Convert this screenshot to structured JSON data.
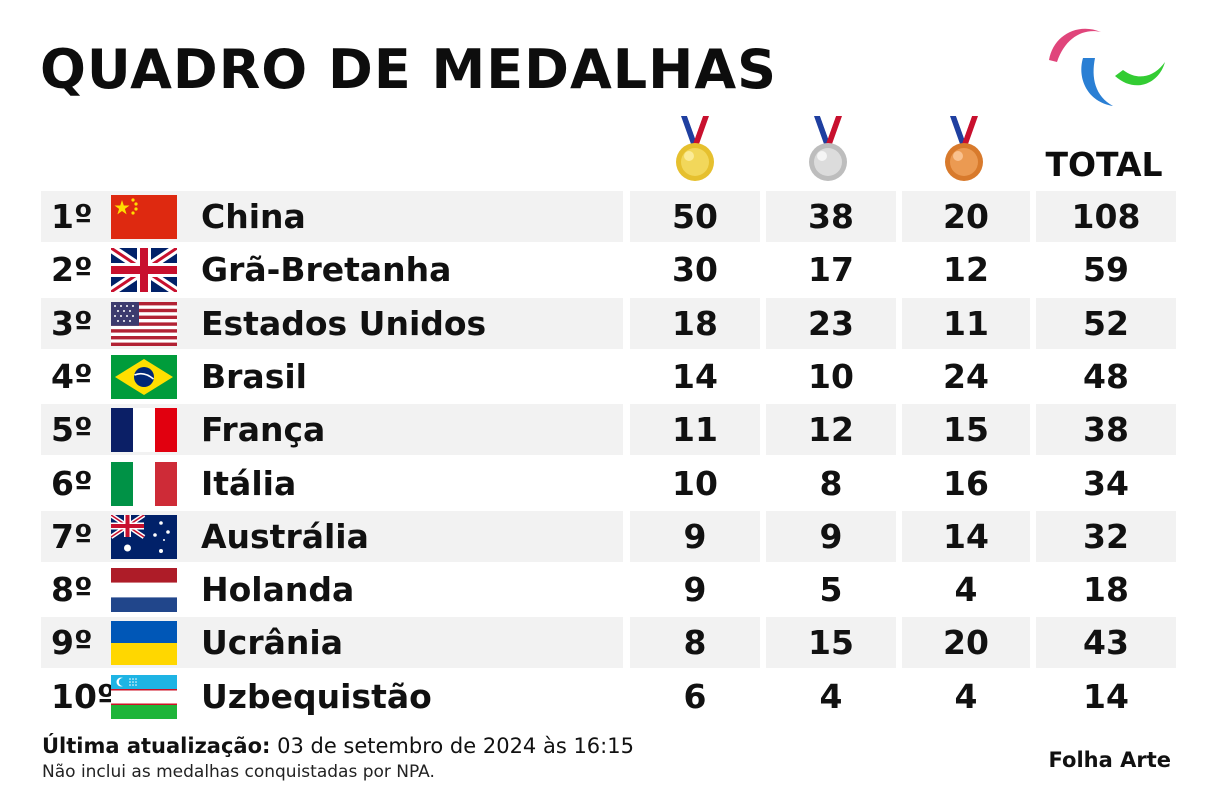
{
  "header": {
    "title": "QUADRO DE MEDALHAS",
    "total_label": "TOTAL"
  },
  "icons": {
    "logo": "paralympic-agitos-icon",
    "gold": "gold-medal-icon",
    "silver": "silver-medal-icon",
    "bronze": "bronze-medal-icon"
  },
  "colors": {
    "agitos_red": "#e0457b",
    "agitos_blue": "#2a7fd4",
    "agitos_green": "#33cc33",
    "gold": "#e6c02e",
    "silver": "#c9c9c9",
    "bronze": "#e08a3c",
    "row_shade": "#f2f2f2"
  },
  "rows": [
    {
      "rank": "1º",
      "country": "China",
      "flag": "china-flag-icon",
      "gold": "50",
      "silver": "38",
      "bronze": "20",
      "total": "108"
    },
    {
      "rank": "2º",
      "country": "Grã-Bretanha",
      "flag": "great-britain-flag-icon",
      "gold": "30",
      "silver": "17",
      "bronze": "12",
      "total": "59"
    },
    {
      "rank": "3º",
      "country": "Estados Unidos",
      "flag": "usa-flag-icon",
      "gold": "18",
      "silver": "23",
      "bronze": "11",
      "total": "52"
    },
    {
      "rank": "4º",
      "country": "Brasil",
      "flag": "brazil-flag-icon",
      "gold": "14",
      "silver": "10",
      "bronze": "24",
      "total": "48"
    },
    {
      "rank": "5º",
      "country": "França",
      "flag": "france-flag-icon",
      "gold": "11",
      "silver": "12",
      "bronze": "15",
      "total": "38"
    },
    {
      "rank": "6º",
      "country": "Itália",
      "flag": "italy-flag-icon",
      "gold": "10",
      "silver": "8",
      "bronze": "16",
      "total": "34"
    },
    {
      "rank": "7º",
      "country": "Austrália",
      "flag": "australia-flag-icon",
      "gold": "9",
      "silver": "9",
      "bronze": "14",
      "total": "32"
    },
    {
      "rank": "8º",
      "country": "Holanda",
      "flag": "netherlands-flag-icon",
      "gold": "9",
      "silver": "5",
      "bronze": "4",
      "total": "18"
    },
    {
      "rank": "9º",
      "country": "Ucrânia",
      "flag": "ukraine-flag-icon",
      "gold": "8",
      "silver": "15",
      "bronze": "20",
      "total": "43"
    },
    {
      "rank": "10º",
      "country": "Uzbequistão",
      "flag": "uzbekistan-flag-icon",
      "gold": "6",
      "silver": "4",
      "bronze": "4",
      "total": "14"
    }
  ],
  "footer": {
    "update_label": "Última atualização:",
    "update_value": " 03 de setembro de 2024 às 16:15",
    "note": "Não inclui as medalhas conquistadas por NPA.",
    "credit": "Folha Arte"
  }
}
